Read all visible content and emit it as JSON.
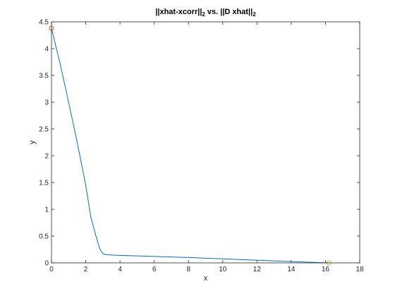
{
  "chart_data": {
    "type": "line",
    "title": "||xhat-xcorr||",
    "title_sub1": "2",
    "title_mid": " vs. ||D xhat||",
    "title_sub2": "2",
    "xlabel": "x",
    "ylabel": "y",
    "xlim": [
      0,
      18
    ],
    "ylim": [
      0,
      4.5
    ],
    "xticks": [
      0,
      2,
      4,
      6,
      8,
      10,
      12,
      14,
      16,
      18
    ],
    "yticks": [
      0,
      0.5,
      1,
      1.5,
      2,
      2.5,
      3,
      3.5,
      4,
      4.5
    ],
    "grid": false,
    "box": true,
    "series": [
      {
        "color": "#0072bd",
        "x": [
          0,
          0.5,
          1.0,
          1.5,
          2.0,
          2.3,
          2.6,
          2.8,
          2.95,
          3.1,
          3.3,
          4,
          6,
          8,
          10,
          12,
          14,
          16.2
        ],
        "y": [
          4.38,
          3.72,
          3.0,
          2.25,
          1.45,
          0.85,
          0.5,
          0.28,
          0.19,
          0.16,
          0.15,
          0.14,
          0.12,
          0.1,
          0.075,
          0.05,
          0.025,
          0.0
        ]
      }
    ],
    "markers": [
      {
        "x": 0,
        "y": 4.38,
        "color": "#d95319",
        "shape": "circle"
      },
      {
        "x": 16.2,
        "y": 0.0,
        "color": "#edb120",
        "shape": "circle"
      }
    ]
  }
}
